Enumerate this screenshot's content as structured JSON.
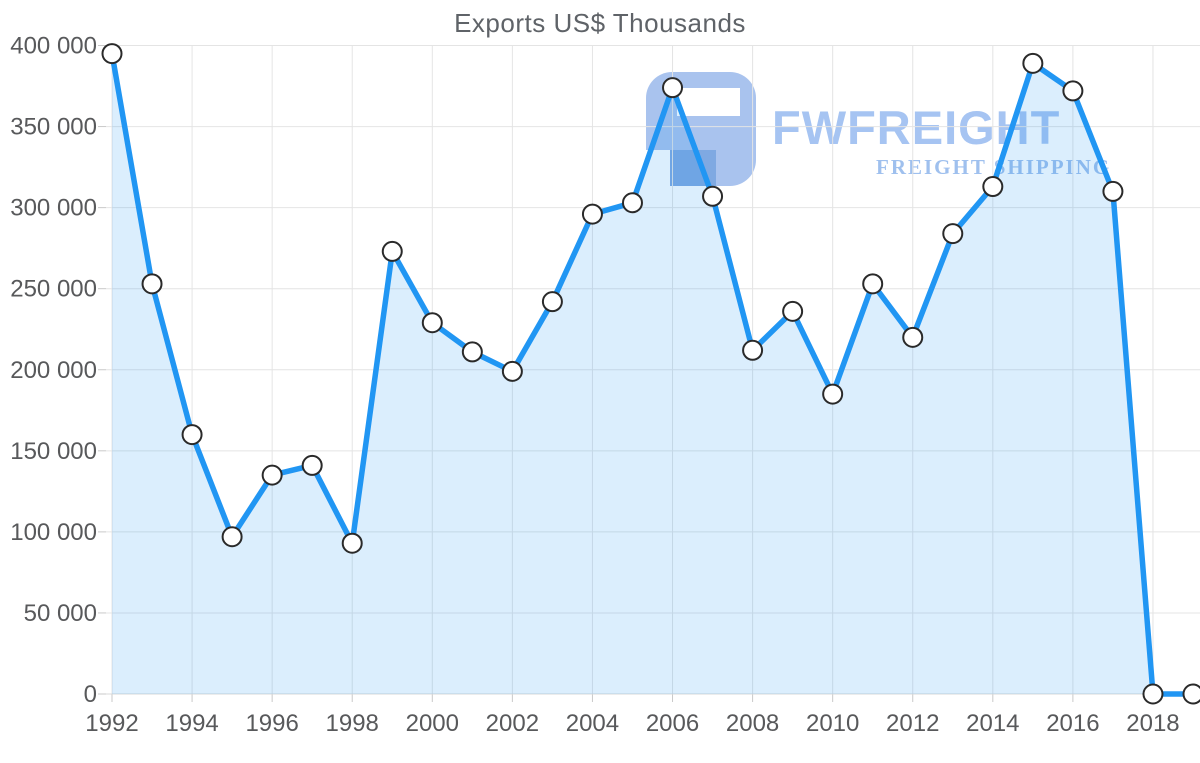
{
  "page": {
    "background": "#ffffff"
  },
  "chart_data": {
    "type": "area",
    "title": "Exports US$ Thousands",
    "xlabel": "",
    "ylabel": "",
    "x": [
      1992,
      1993,
      1994,
      1995,
      1996,
      1997,
      1998,
      1999,
      2000,
      2001,
      2002,
      2003,
      2004,
      2005,
      2006,
      2007,
      2008,
      2009,
      2010,
      2011,
      2012,
      2013,
      2014,
      2015,
      2016,
      2017,
      2018,
      2019
    ],
    "series": [
      {
        "name": "Exports US$ Thousands",
        "values": [
          395000,
          253000,
          160000,
          97000,
          135000,
          141000,
          93000,
          273000,
          229000,
          211000,
          199000,
          242000,
          296000,
          303000,
          374000,
          307000,
          212000,
          236000,
          185000,
          253000,
          220000,
          284000,
          313000,
          389000,
          372000,
          310000,
          0,
          0
        ]
      }
    ],
    "ylim": [
      0,
      400000
    ],
    "y_ticks": [
      0,
      50000,
      100000,
      150000,
      200000,
      250000,
      300000,
      350000,
      400000
    ],
    "y_tick_labels": [
      "0",
      "50 000",
      "100 000",
      "150 000",
      "200 000",
      "250 000",
      "300 000",
      "350 000",
      "400 000"
    ],
    "x_tick_years": [
      1992,
      1994,
      1996,
      1998,
      2000,
      2002,
      2004,
      2006,
      2008,
      2010,
      2012,
      2014,
      2016,
      2018
    ],
    "x_tick_labels": [
      "1992",
      "1994",
      "1996",
      "1998",
      "2000",
      "2002",
      "2004",
      "2006",
      "2008",
      "2010",
      "2012",
      "2014",
      "2016",
      "2018"
    ],
    "grid": true,
    "legend_position": "none",
    "colors": {
      "line": "#2196f3",
      "area_fill": "rgba(33,150,243,0.16)",
      "marker_fill": "#ffffff",
      "marker_stroke": "#2a2a2a",
      "gridline": "#e4e4e4",
      "baseline": "#d8d8d8",
      "tick": "#c9c9c9",
      "axis_text": "#58595b",
      "title_text": "#5f6368"
    }
  },
  "watermark": {
    "brand": "FWFREIGHT",
    "tagline": "FREIGHT SHIPPING",
    "colors": {
      "logo": "#a9c3ee",
      "logo_accent": "#7fa9e2",
      "brand_text": "#a6c4f2",
      "tagline_text": "#9fc0ee"
    }
  }
}
